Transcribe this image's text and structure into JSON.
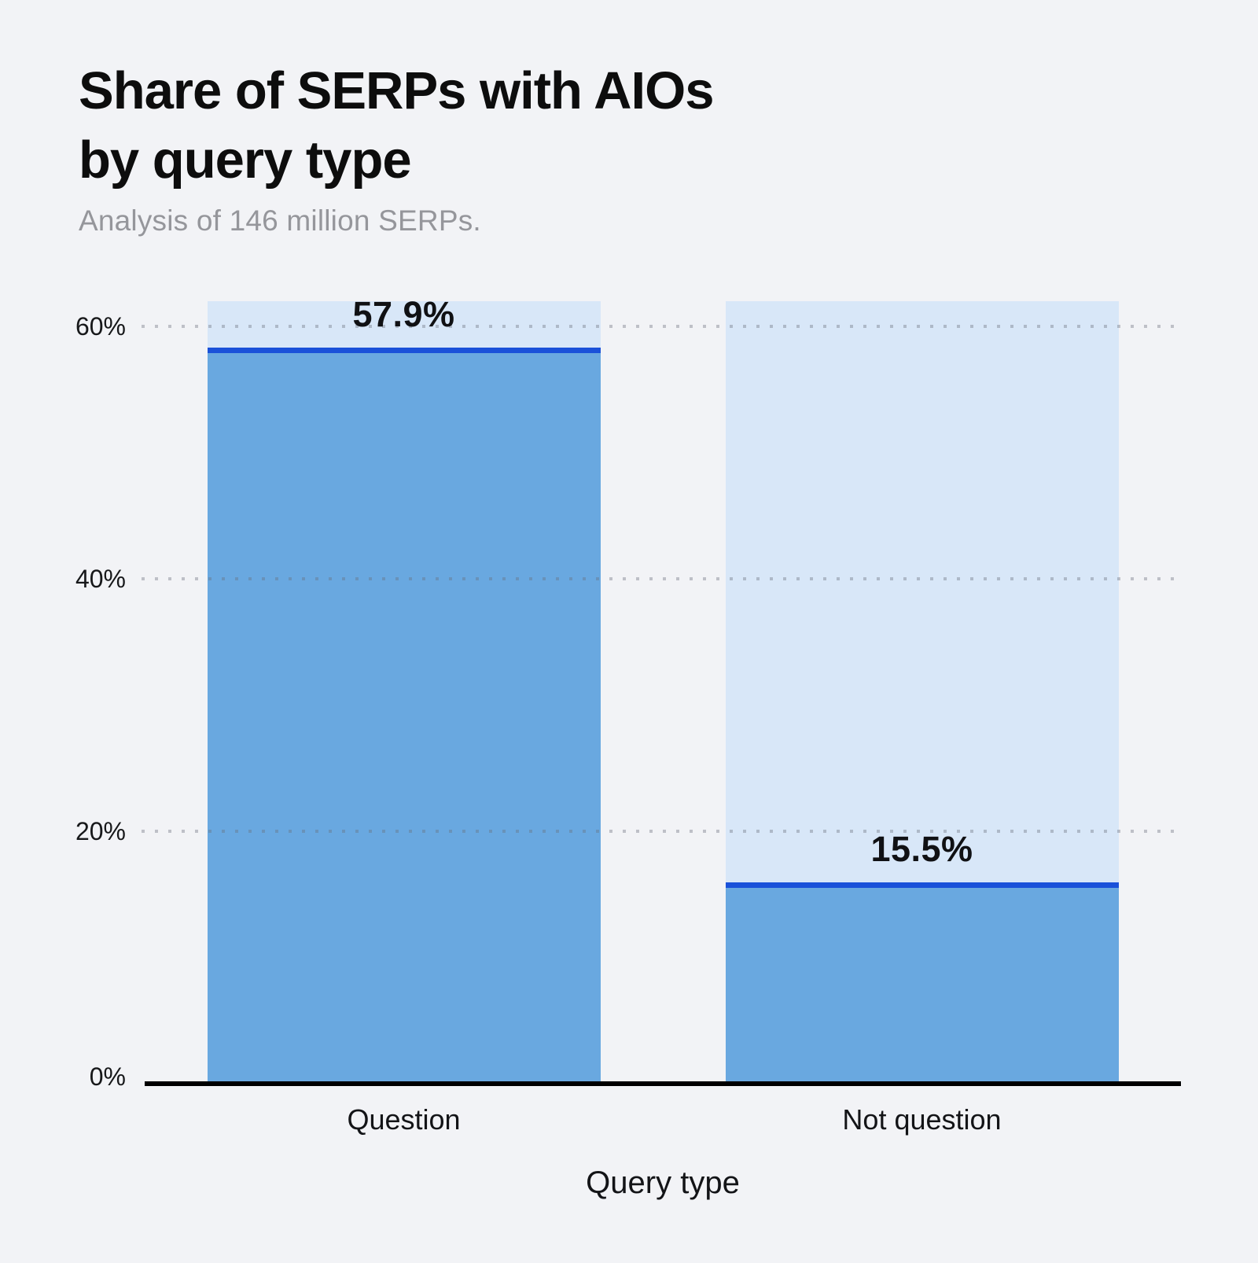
{
  "page": {
    "background": "#f2f3f6"
  },
  "header": {
    "title_line1": "Share of SERPs with AIOs",
    "title_line2": "by query type",
    "subtitle": "Analysis of 146 million SERPs."
  },
  "chart_data": {
    "type": "bar",
    "title": "Share of SERPs with AIOs by query type",
    "subtitle": "Analysis of 146 million SERPs.",
    "categories": [
      "Question",
      "Not question"
    ],
    "values": [
      57.9,
      15.5
    ],
    "value_labels": [
      "57.9%",
      "15.5%"
    ],
    "xlabel": "Query type",
    "ylabel": "",
    "ylim": [
      0,
      62
    ],
    "yticks": [
      {
        "value": 0,
        "label": "0%"
      },
      {
        "value": 20,
        "label": "20%"
      },
      {
        "value": 40,
        "label": "40%"
      },
      {
        "value": 60,
        "label": "60%"
      }
    ],
    "grid": "horizontal-dotted",
    "legend": "none",
    "colors": {
      "bar_fill": "#69a8e0",
      "bar_background": "#d8e7f8",
      "marker_line": "#1a51d9",
      "gridline_dot": "rgba(104,110,122,0.38)",
      "axis_line": "#000000",
      "title": "#0d0d0d",
      "subtitle": "#95969b",
      "label": "#131417"
    }
  }
}
